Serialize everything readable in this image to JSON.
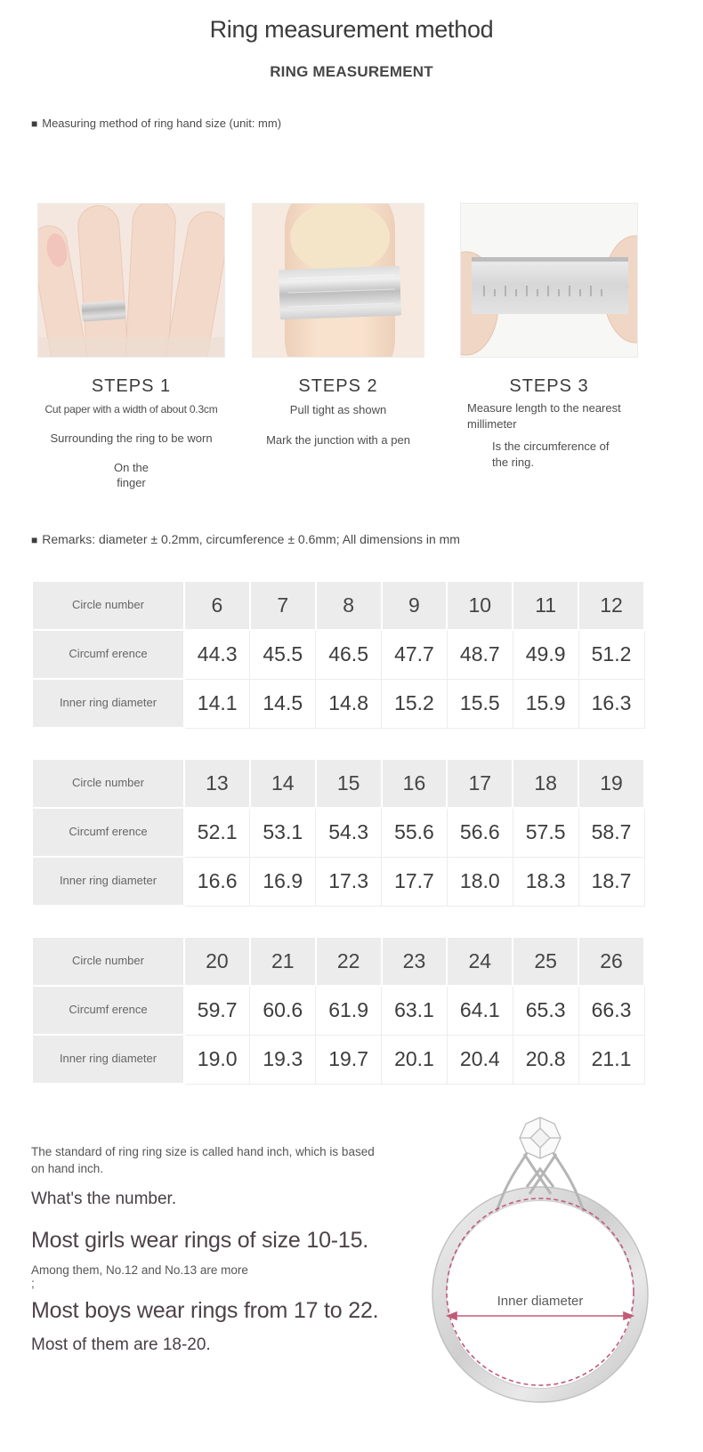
{
  "page": {
    "title": "Ring measurement method",
    "subtitle": "RING MEASUREMENT",
    "bullet": "■",
    "measuring_label": "Measuring method of ring hand size (unit: mm)",
    "remarks": "Remarks: diameter ± 0.2mm, circumference ± 0.6mm; All dimensions in mm"
  },
  "steps": [
    {
      "title": "STEPS 1",
      "image": "hand-with-paper-ring-photo",
      "lines": [
        "Cut paper with a width of about 0.3cm",
        "Surrounding the ring to be worn",
        "On the finger"
      ]
    },
    {
      "title": "STEPS 2",
      "image": "finger-with-paper-band-photo",
      "lines": [
        "Pull tight as shown",
        "Mark the junction with a pen"
      ]
    },
    {
      "title": "STEPS 3",
      "image": "measuring-strip-photo",
      "lines": [
        "Measure length to the nearest millimeter",
        "Is the circumference of the ring."
      ]
    }
  ],
  "size_chart": {
    "type": "table",
    "row_labels": [
      "Circle number",
      "Circumf erence",
      "Inner ring diameter"
    ],
    "tables": [
      {
        "circle_numbers": [
          "6",
          "7",
          "8",
          "9",
          "10",
          "11",
          "12"
        ],
        "circumference": [
          "44.3",
          "45.5",
          "46.5",
          "47.7",
          "48.7",
          "49.9",
          "51.2"
        ],
        "inner_diameter": [
          "14.1",
          "14.5",
          "14.8",
          "15.2",
          "15.5",
          "15.9",
          "16.3"
        ]
      },
      {
        "circle_numbers": [
          "13",
          "14",
          "15",
          "16",
          "17",
          "18",
          "19"
        ],
        "circumference": [
          "52.1",
          "53.1",
          "54.3",
          "55.6",
          "56.6",
          "57.5",
          "58.7"
        ],
        "inner_diameter": [
          "16.6",
          "16.9",
          "17.3",
          "17.7",
          "18.0",
          "18.3",
          "18.7"
        ]
      },
      {
        "circle_numbers": [
          "20",
          "21",
          "22",
          "23",
          "24",
          "25",
          "26"
        ],
        "circumference": [
          "59.7",
          "60.6",
          "61.9",
          "63.1",
          "64.1",
          "65.3",
          "66.3"
        ],
        "inner_diameter": [
          "19.0",
          "19.3",
          "19.7",
          "20.1",
          "20.4",
          "20.8",
          "21.1"
        ]
      }
    ]
  },
  "footer": {
    "standard_text": "The standard of ring ring size is called hand inch, which is based on hand inch.",
    "whats_number": "What's the number.",
    "girls_line": "Most girls wear rings of size 10-15.",
    "among_line": "Among them, No.12 and No.13 are more",
    "semicolon": ";",
    "boys_line": "Most boys wear rings from 17 to 22.",
    "most_line": "Most of them are 18-20.",
    "ring_label": "Inner diameter"
  },
  "colors": {
    "accent_rose": "#c05c78",
    "table_gray": "#ececec",
    "text_dark": "#3f3f3f"
  }
}
